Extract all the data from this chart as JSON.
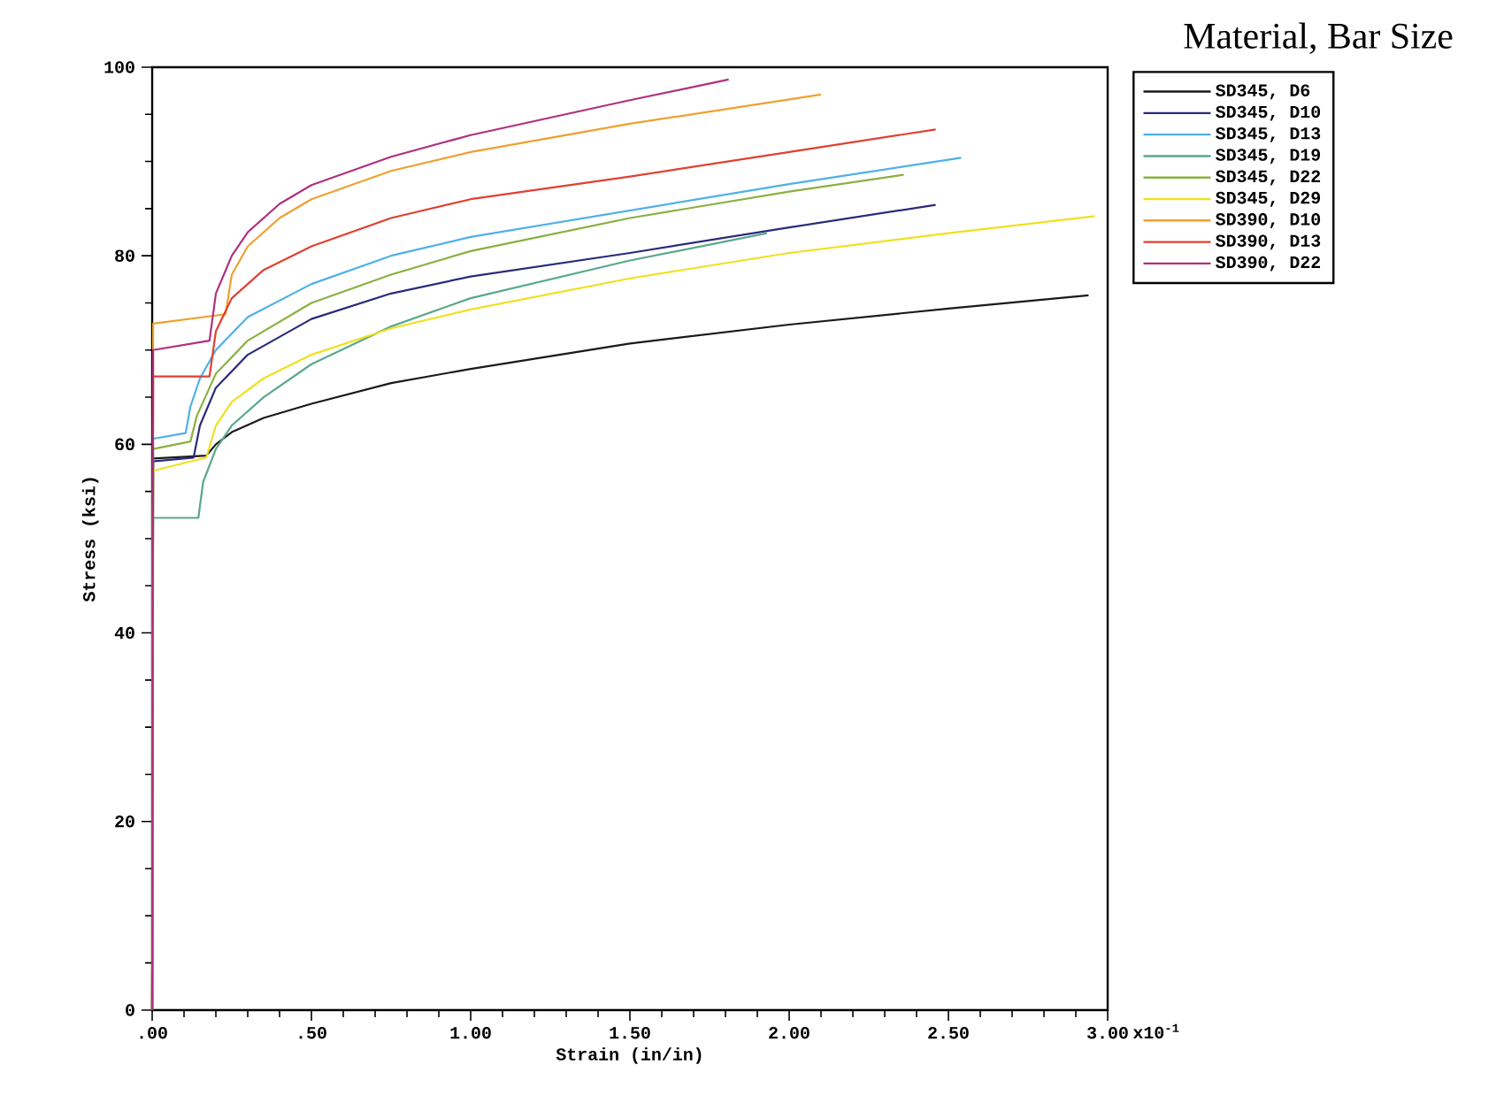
{
  "chart_data": {
    "type": "line",
    "xlabel": "Strain (in/in)",
    "ylabel": "Stress (ksi)",
    "legend_title": "Material, Bar Size",
    "annotations": [
      "x10$^{-1}$"
    ],
    "xlim": [
      0,
      3
    ],
    "ylim": [
      0,
      100
    ],
    "xticks": [
      {
        "value": 0,
        "label": ".00"
      },
      {
        "value": 0.5,
        "label": ".50"
      },
      {
        "value": 1,
        "label": "1.00"
      },
      {
        "value": 1.5,
        "label": "1.50"
      },
      {
        "value": 2,
        "label": "2.00"
      },
      {
        "value": 2.5,
        "label": "2.50"
      },
      {
        "value": 3,
        "label": "3.00"
      }
    ],
    "yticks": [
      0,
      20,
      40,
      60,
      80,
      100
    ],
    "legend": "top right",
    "grid": false,
    "marker": "none",
    "line_style": "solid",
    "series": [
      {
        "name": "SD345, D6",
        "color": "#1a1a1a",
        "x": [
          0,
          0.003,
          0.17,
          0.2,
          0.25,
          0.35,
          0.5,
          0.75,
          1.0,
          1.5,
          2.0,
          2.5,
          2.94
        ],
        "values": [
          0,
          58.5,
          58.8,
          60,
          61.3,
          62.8,
          64.3,
          66.5,
          68,
          70.7,
          72.7,
          74.4,
          75.8
        ]
      },
      {
        "name": "SD345, D10",
        "color": "#2a2a7a",
        "x": [
          0,
          0.003,
          0.13,
          0.15,
          0.2,
          0.3,
          0.5,
          0.75,
          1.0,
          1.5,
          2.0,
          2.46
        ],
        "values": [
          0,
          58.2,
          58.6,
          62,
          66,
          69.5,
          73.3,
          76,
          77.8,
          80.3,
          83,
          85.4
        ]
      },
      {
        "name": "SD345, D13",
        "color": "#4fb0e8",
        "x": [
          0,
          0.003,
          0.105,
          0.12,
          0.15,
          0.2,
          0.3,
          0.5,
          0.75,
          1.0,
          1.5,
          2.0,
          2.54
        ],
        "values": [
          0,
          60.6,
          61.2,
          64,
          67,
          70,
          73.5,
          77,
          80,
          82,
          84.8,
          87.6,
          90.4
        ]
      },
      {
        "name": "SD345, D19",
        "color": "#5aa88a",
        "x": [
          0,
          0.003,
          0.145,
          0.16,
          0.2,
          0.25,
          0.35,
          0.5,
          0.75,
          1.0,
          1.5,
          1.93
        ],
        "values": [
          0,
          52.2,
          52.2,
          56,
          59.5,
          62,
          65,
          68.5,
          72.5,
          75.5,
          79.5,
          82.4
        ]
      },
      {
        "name": "SD345, D22",
        "color": "#8ab040",
        "x": [
          0,
          0.003,
          0.12,
          0.14,
          0.2,
          0.3,
          0.5,
          0.75,
          1.0,
          1.5,
          2.0,
          2.36
        ],
        "values": [
          0,
          59.5,
          60.3,
          63,
          67.5,
          71,
          75,
          78,
          80.5,
          84,
          86.8,
          88.6
        ]
      },
      {
        "name": "SD345, D29",
        "color": "#f0e020",
        "x": [
          0,
          0.003,
          0.17,
          0.2,
          0.25,
          0.35,
          0.5,
          0.75,
          1.0,
          1.5,
          2.0,
          2.5,
          2.96
        ],
        "values": [
          0,
          57.2,
          58.6,
          62,
          64.5,
          67,
          69.5,
          72.3,
          74.3,
          77.6,
          80.3,
          82.4,
          84.2
        ]
      },
      {
        "name": "SD390, D10",
        "color": "#f0a030",
        "x": [
          0,
          0.003,
          0.23,
          0.25,
          0.3,
          0.4,
          0.5,
          0.75,
          1.0,
          1.5,
          2.1
        ],
        "values": [
          0,
          72.8,
          73.8,
          78,
          81,
          84,
          86,
          89,
          91,
          94,
          97.1
        ]
      },
      {
        "name": "SD390, D13",
        "color": "#e04030",
        "x": [
          0,
          0.003,
          0.18,
          0.2,
          0.25,
          0.35,
          0.5,
          0.75,
          1.0,
          1.5,
          2.0,
          2.46
        ],
        "values": [
          0,
          67.2,
          67.2,
          72,
          75.5,
          78.5,
          81,
          84,
          86,
          88.4,
          91,
          93.4
        ]
      },
      {
        "name": "SD390, D22",
        "color": "#b03080",
        "x": [
          0,
          0.003,
          0.18,
          0.2,
          0.25,
          0.3,
          0.4,
          0.5,
          0.75,
          1.0,
          1.5,
          1.81
        ],
        "values": [
          0,
          70,
          71,
          76,
          80,
          82.5,
          85.5,
          87.5,
          90.5,
          92.8,
          96.5,
          98.7
        ]
      }
    ]
  }
}
